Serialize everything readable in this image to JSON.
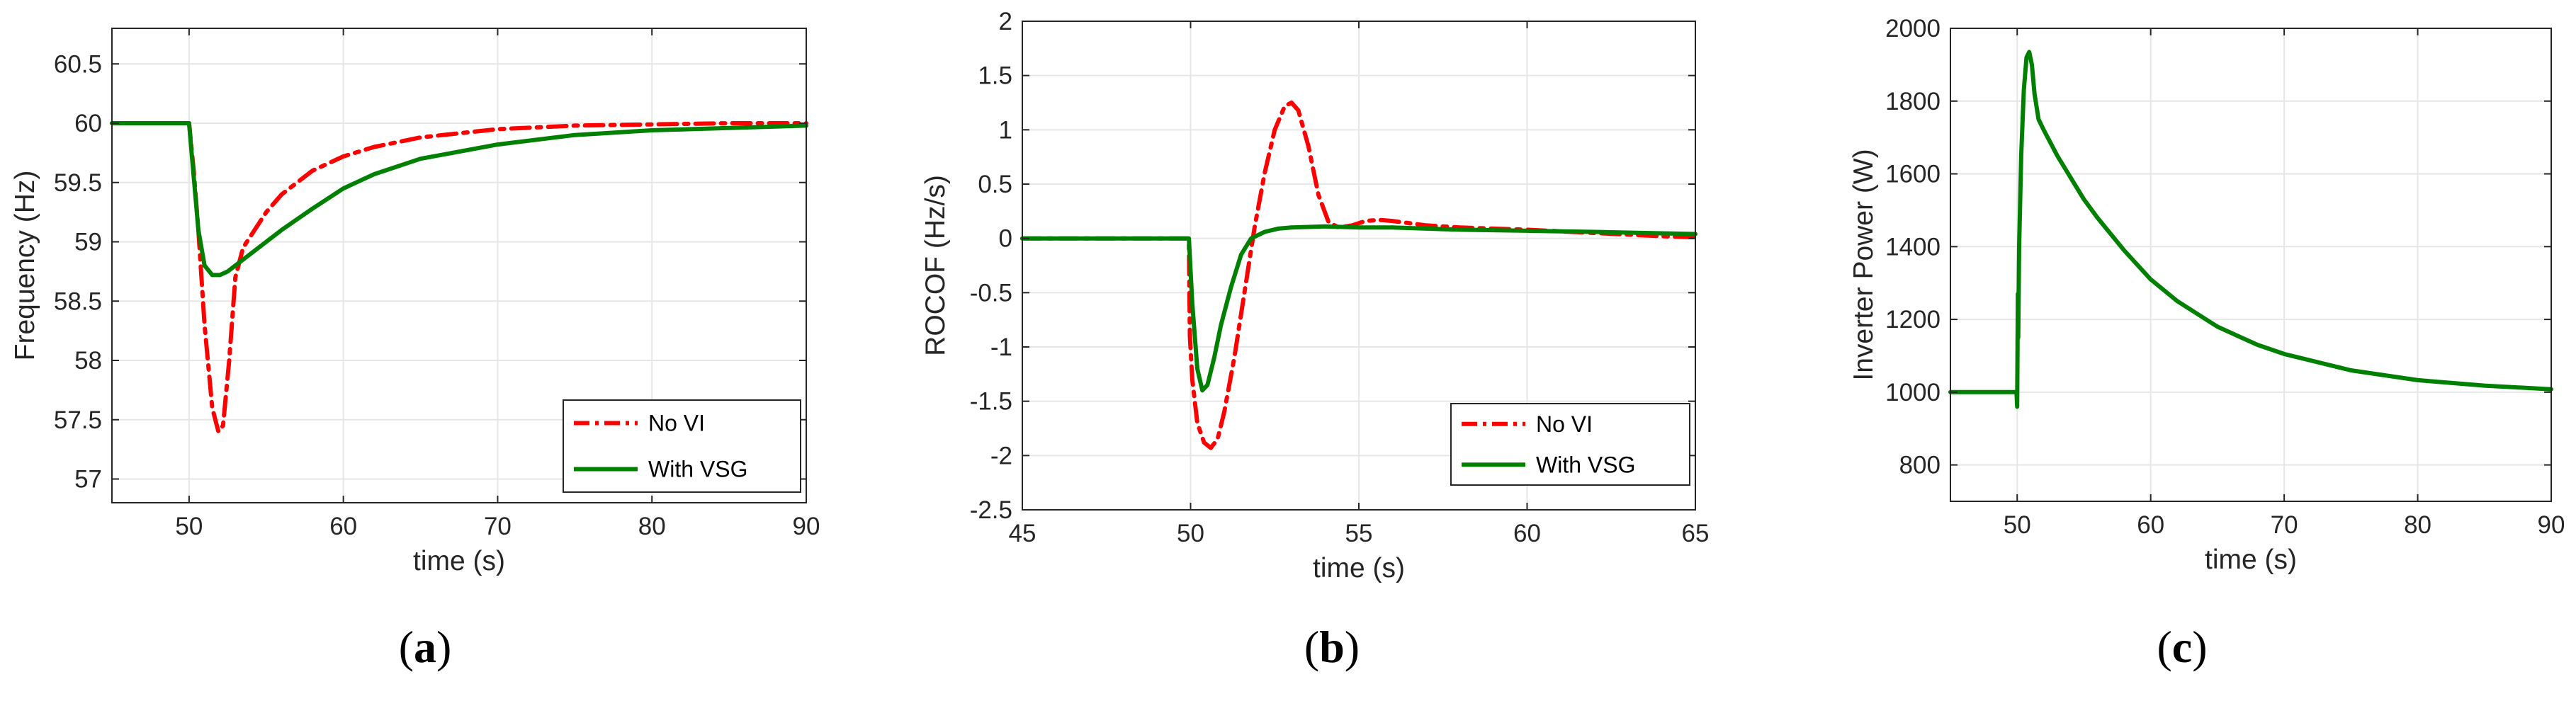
{
  "colors": {
    "no_vi": "#ff0000",
    "with_vsg": "#008000",
    "grid": "#e6e6e6",
    "axis": "#262626"
  },
  "chart_data": [
    {
      "type": "line",
      "caption": "a",
      "xlabel": "time (s)",
      "ylabel": "Frequency (Hz)",
      "xlim": [
        45,
        90
      ],
      "ylim": [
        56.8,
        60.8
      ],
      "xticks": [
        "50",
        "60",
        "70",
        "80",
        "90"
      ],
      "yticks": [
        "57",
        "57.5",
        "58",
        "58.5",
        "59",
        "59.5",
        "60",
        "60.5"
      ],
      "grid": true,
      "legend_position": "bottom-right",
      "series": [
        {
          "name": "No VI",
          "style": "dash-dot",
          "color": "#ff0000",
          "x": [
            45,
            50,
            50.3,
            50.6,
            51,
            51.5,
            51.9,
            52.2,
            52.6,
            53,
            53.5,
            54,
            55,
            56,
            58,
            60,
            62,
            65,
            70,
            75,
            80,
            85,
            90
          ],
          "y": [
            60,
            60,
            59.6,
            59.1,
            58.3,
            57.6,
            57.4,
            57.45,
            58.0,
            58.7,
            58.95,
            59.05,
            59.25,
            59.4,
            59.6,
            59.72,
            59.8,
            59.88,
            59.95,
            59.98,
            59.99,
            60,
            60
          ]
        },
        {
          "name": "With VSG",
          "style": "solid",
          "color": "#008000",
          "x": [
            45,
            50,
            50.2,
            50.6,
            51,
            51.5,
            52,
            52.5,
            53,
            54,
            55,
            56,
            58,
            60,
            62,
            65,
            70,
            75,
            80,
            85,
            90
          ],
          "y": [
            60,
            60,
            59.7,
            59.1,
            58.8,
            58.72,
            58.72,
            58.75,
            58.8,
            58.9,
            59.0,
            59.1,
            59.28,
            59.45,
            59.57,
            59.7,
            59.82,
            59.9,
            59.94,
            59.96,
            59.98
          ]
        }
      ],
      "legend": [
        "No VI",
        "With VSG"
      ]
    },
    {
      "type": "line",
      "caption": "b",
      "xlabel": "time (s)",
      "ylabel": "ROCOF (Hz/s)",
      "xlim": [
        45,
        65
      ],
      "ylim": [
        -2.5,
        2
      ],
      "xticks": [
        "45",
        "50",
        "55",
        "60",
        "65"
      ],
      "yticks": [
        "-2.5",
        "-2",
        "-1.5",
        "-1",
        "-0.5",
        "0",
        "0.5",
        "1",
        "1.5",
        "2"
      ],
      "grid": true,
      "legend_position": "bottom-right",
      "series": [
        {
          "name": "No VI",
          "style": "dash-dot",
          "color": "#ff0000",
          "x": [
            45,
            49.95,
            49.98,
            50.05,
            50.2,
            50.4,
            50.6,
            50.8,
            51,
            51.3,
            51.6,
            51.9,
            52.2,
            52.5,
            52.8,
            53,
            53.2,
            53.5,
            53.8,
            54.1,
            54.4,
            54.8,
            55.2,
            55.6,
            56,
            57,
            58,
            60,
            62,
            64,
            65
          ],
          "y": [
            0,
            0,
            -0.9,
            -1.3,
            -1.7,
            -1.88,
            -1.93,
            -1.85,
            -1.6,
            -1.1,
            -0.5,
            0.1,
            0.6,
            1.0,
            1.22,
            1.25,
            1.18,
            0.85,
            0.4,
            0.15,
            0.1,
            0.12,
            0.16,
            0.17,
            0.16,
            0.12,
            0.1,
            0.08,
            0.05,
            0.02,
            0.01
          ]
        },
        {
          "name": "With VSG",
          "style": "solid",
          "color": "#008000",
          "x": [
            45,
            49.95,
            50.05,
            50.2,
            50.35,
            50.5,
            50.7,
            50.9,
            51.2,
            51.5,
            51.8,
            52.2,
            52.6,
            53,
            54,
            55,
            56,
            58,
            60,
            62,
            65
          ],
          "y": [
            0,
            0,
            -0.6,
            -1.2,
            -1.4,
            -1.35,
            -1.1,
            -0.8,
            -0.45,
            -0.15,
            0.0,
            0.06,
            0.09,
            0.1,
            0.11,
            0.1,
            0.1,
            0.08,
            0.07,
            0.06,
            0.04
          ]
        }
      ],
      "legend": [
        "No VI",
        "With VSG"
      ]
    },
    {
      "type": "line",
      "caption": "c",
      "xlabel": "time (s)",
      "ylabel": "Inverter Power (W)",
      "xlim": [
        45,
        90
      ],
      "ylim": [
        700,
        2000
      ],
      "xticks": [
        "50",
        "60",
        "70",
        "80",
        "90"
      ],
      "yticks": [
        "800",
        "1000",
        "1200",
        "1400",
        "1600",
        "1800",
        "2000"
      ],
      "grid": true,
      "series": [
        {
          "name": "Inverter Power",
          "style": "solid",
          "color": "#008000",
          "x": [
            45,
            49.95,
            50.0,
            50.05,
            50.08,
            50.15,
            50.3,
            50.5,
            50.7,
            50.9,
            51.1,
            51.3,
            51.6,
            52,
            53,
            54,
            55,
            56,
            58,
            60,
            62,
            65,
            68,
            70,
            75,
            80,
            85,
            90
          ],
          "y": [
            1000,
            1000,
            960,
            1270,
            1150,
            1400,
            1650,
            1830,
            1920,
            1935,
            1900,
            1820,
            1750,
            1720,
            1650,
            1590,
            1530,
            1480,
            1390,
            1310,
            1250,
            1180,
            1130,
            1105,
            1060,
            1033,
            1018,
            1008
          ]
        }
      ]
    }
  ]
}
